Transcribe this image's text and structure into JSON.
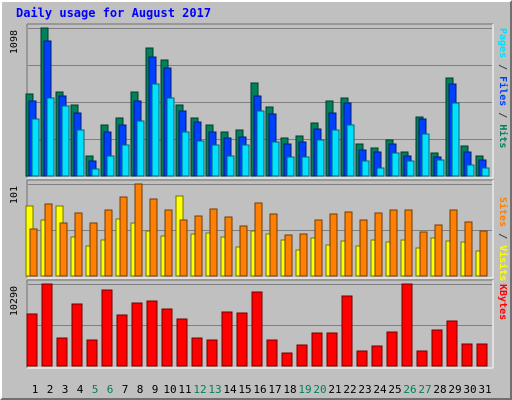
{
  "chart_data": {
    "type": "bar",
    "title": "Daily usage for August 2017",
    "days": [
      "1",
      "2",
      "3",
      "4",
      "5",
      "6",
      "7",
      "8",
      "9",
      "10",
      "11",
      "12",
      "13",
      "14",
      "15",
      "16",
      "17",
      "18",
      "19",
      "20",
      "21",
      "22",
      "23",
      "24",
      "25",
      "26",
      "27",
      "28",
      "29",
      "30",
      "31"
    ],
    "weekend_days": [
      "5",
      "6",
      "12",
      "13",
      "19",
      "20",
      "26",
      "27"
    ],
    "panels": [
      {
        "max_label": "1098",
        "max": 1098,
        "right_labels": [
          {
            "text": "Hits",
            "color": "#00805c"
          },
          {
            "text": " / ",
            "color": "#404040"
          },
          {
            "text": "Files",
            "color": "#0040ff"
          },
          {
            "text": " / ",
            "color": "#404040"
          },
          {
            "text": "Pages",
            "color": "#00e0ff"
          }
        ],
        "series": [
          {
            "name": "Hits",
            "color": "#00805c",
            "values": [
              610,
              1098,
              620,
              530,
              150,
              380,
              430,
              620,
              950,
              860,
              530,
              430,
              380,
              330,
              340,
              690,
              510,
              280,
              300,
              390,
              560,
              580,
              240,
              210,
              270,
              180,
              440,
              170,
              730,
              220,
              150
            ]
          },
          {
            "name": "Files",
            "color": "#0040ff",
            "values": [
              560,
              1000,
              590,
              470,
              110,
              330,
              380,
              560,
              880,
              800,
              480,
              400,
              330,
              280,
              290,
              590,
              460,
              240,
              250,
              350,
              470,
              540,
              190,
              180,
              240,
              150,
              420,
              140,
              680,
              180,
              120
            ]
          },
          {
            "name": "Pages",
            "color": "#00e0ff",
            "values": [
              420,
              580,
              520,
              340,
              50,
              150,
              230,
              410,
              680,
              580,
              330,
              260,
              230,
              150,
              230,
              480,
              250,
              140,
              140,
              270,
              340,
              380,
              110,
              60,
              170,
              110,
              310,
              120,
              540,
              80,
              60
            ]
          }
        ]
      },
      {
        "max_label": "101",
        "max": 101,
        "right_labels": [
          {
            "text": "Visits",
            "color": "#ffff00"
          },
          {
            "text": " / ",
            "color": "#404040"
          },
          {
            "text": "Sites",
            "color": "#ff8000"
          }
        ],
        "series": [
          {
            "name": "Visits",
            "color": "#ffff00",
            "values": [
              77,
              62,
              77,
              43,
              33,
              40,
              63,
              58,
              49,
              44,
              88,
              46,
              47,
              43,
              32,
              49,
              46,
              39,
              29,
              42,
              34,
              38,
              33,
              40,
              37,
              39,
              31,
              42,
              38,
              37,
              27
            ]
          },
          {
            "name": "Sites",
            "color": "#ff8000",
            "values": [
              52,
              79,
              58,
              69,
              58,
              72,
              87,
              101,
              84,
              72,
              62,
              66,
              74,
              65,
              55,
              80,
              68,
              45,
              46,
              62,
              68,
              70,
              62,
              69,
              72,
              72,
              48,
              56,
              73,
              59,
              49
            ]
          }
        ]
      },
      {
        "max_label": "10290",
        "max": 10290,
        "right_labels": [
          {
            "text": "KBytes",
            "color": "#ff0000"
          }
        ],
        "series": [
          {
            "name": "KBytes",
            "color": "#ff0000",
            "values": [
              6500,
              10290,
              3500,
              7800,
              3300,
              9500,
              6400,
              7900,
              8100,
              7200,
              5900,
              3500,
              3200,
              6800,
              6700,
              9300,
              3300,
              1600,
              2600,
              4200,
              4100,
              8800,
              1900,
              2500,
              4300,
              10290,
              1900,
              4500,
              5600,
              2800,
              2700
            ]
          }
        ]
      }
    ]
  }
}
